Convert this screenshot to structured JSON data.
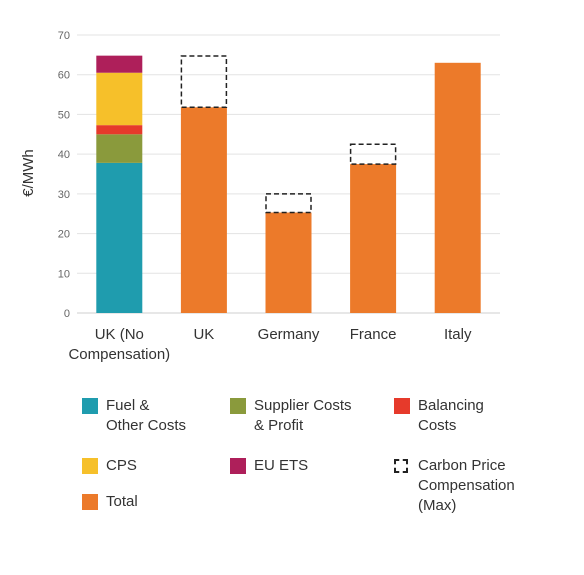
{
  "chart_data": {
    "type": "bar",
    "stacked": true,
    "ylabel": "€/MWh",
    "ylim": [
      0,
      70
    ],
    "yticks": [
      0,
      10,
      20,
      30,
      40,
      50,
      60,
      70
    ],
    "grid": true,
    "categories": [
      "UK (No\nCompensation)",
      "UK",
      "Germany",
      "France",
      "Italy"
    ],
    "series": [
      {
        "name": "Fuel &\nOther Costs",
        "key": "fuel",
        "color": "#1f9cae",
        "values": [
          37.8,
          null,
          null,
          null,
          null
        ]
      },
      {
        "name": "Supplier Costs\n& Profit",
        "key": "supplier",
        "color": "#8a9a3c",
        "values": [
          7.2,
          null,
          null,
          null,
          null
        ]
      },
      {
        "name": "Balancing\nCosts",
        "key": "balancing",
        "color": "#e63a2b",
        "values": [
          2.3,
          null,
          null,
          null,
          null
        ]
      },
      {
        "name": "CPS",
        "key": "cps",
        "color": "#f6c02a",
        "values": [
          13.2,
          null,
          null,
          null,
          null
        ]
      },
      {
        "name": "EU ETS",
        "key": "euets",
        "color": "#ae1f5a",
        "values": [
          4.3,
          null,
          null,
          null,
          null
        ]
      },
      {
        "name": "Carbon Price\nCompensation\n(Max)",
        "key": "compensation",
        "color": "#222222",
        "style": "dashed",
        "values": [
          null,
          12.9,
          4.7,
          5.0,
          null
        ]
      },
      {
        "name": "Total",
        "key": "total",
        "color": "#ec7a2a",
        "values": [
          null,
          51.8,
          25.3,
          37.5,
          63.0
        ]
      }
    ],
    "stack_order": [
      "fuel",
      "supplier",
      "balancing",
      "cps",
      "euets",
      "total",
      "compensation"
    ],
    "legend_order": [
      "fuel",
      "supplier",
      "balancing",
      "cps",
      "euets",
      "compensation",
      "total"
    ],
    "legend_position": "bottom"
  }
}
